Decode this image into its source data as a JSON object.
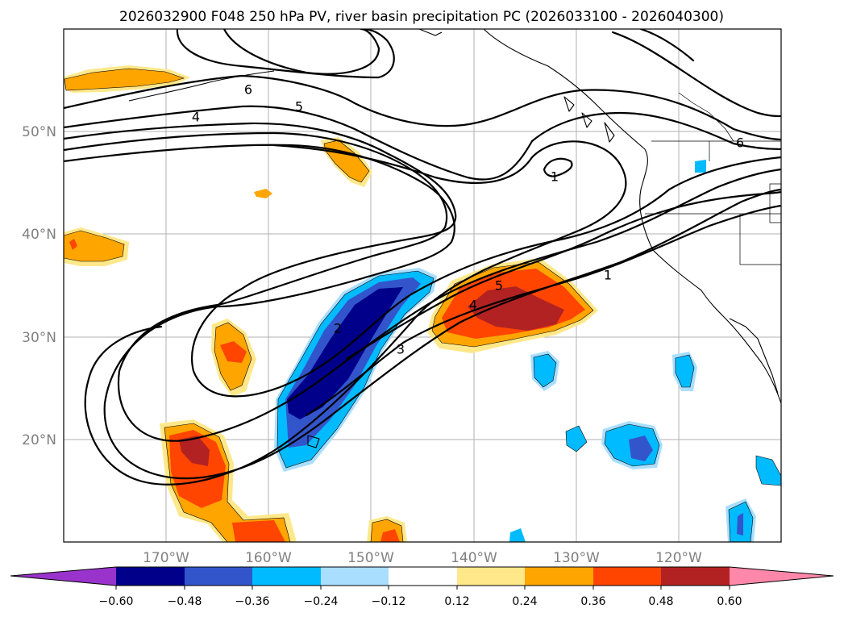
{
  "title": "2026032900 F048 250 hPa PV, river basin precipitation PC (2026033100 - 2026040300)",
  "map": {
    "lon_range": [
      -180,
      -110
    ],
    "lat_range": [
      10,
      60
    ],
    "lon_ticks": [
      {
        "lon": -170,
        "label": "170°W"
      },
      {
        "lon": -160,
        "label": "160°W"
      },
      {
        "lon": -150,
        "label": "150°W"
      },
      {
        "lon": -140,
        "label": "140°W"
      },
      {
        "lon": -130,
        "label": "130°W"
      },
      {
        "lon": -120,
        "label": "120°W"
      }
    ],
    "lat_ticks": [
      {
        "lat": 50,
        "label": "50°N"
      },
      {
        "lat": 40,
        "label": "40°N"
      },
      {
        "lat": 30,
        "label": "30°N"
      },
      {
        "lat": 20,
        "label": "20°N"
      }
    ]
  },
  "pv_contour_labels": [
    {
      "text": "6",
      "lon": -161.9,
      "lat": 54.2
    },
    {
      "text": "5",
      "lon": -156.9,
      "lat": 52.2
    },
    {
      "text": "4",
      "lon": -167.0,
      "lat": 51.2
    },
    {
      "text": "1",
      "lon": -131.2,
      "lat": 46.0
    },
    {
      "text": "6",
      "lon": -113.9,
      "lat": 49.4
    },
    {
      "text": "1",
      "lon": -126.8,
      "lat": 35.5
    },
    {
      "text": "5",
      "lon": -137.4,
      "lat": 34.3
    },
    {
      "text": "4",
      "lon": -139.7,
      "lat": 32.4
    },
    {
      "text": "2",
      "lon": -152.5,
      "lat": 30.8
    },
    {
      "text": "3",
      "lon": -147.0,
      "lat": 28.8
    }
  ],
  "colorbar": {
    "colors": [
      "#9933cc",
      "#00008b",
      "#3355cc",
      "#00bbff",
      "#aadeff",
      "#ffffff",
      "#ffe88a",
      "#ffa500",
      "#ff4500",
      "#b22222",
      "#ff88aa"
    ],
    "ticks": [
      "−0.60",
      "−0.48",
      "−0.36",
      "−0.24",
      "−0.12",
      "0.12",
      "0.24",
      "0.36",
      "0.48",
      "0.60"
    ]
  }
}
